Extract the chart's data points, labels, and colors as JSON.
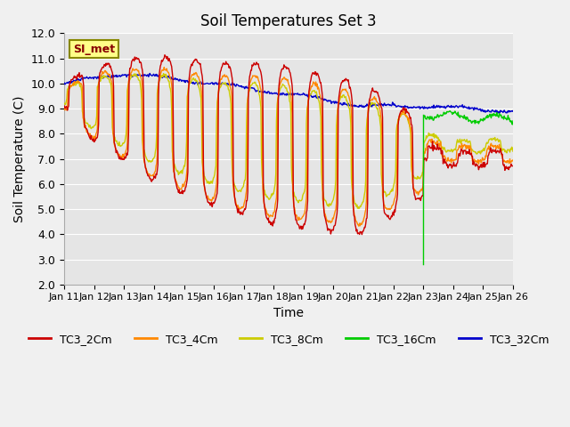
{
  "title": "Soil Temperatures Set 3",
  "xlabel": "Time",
  "ylabel": "Soil Temperature (C)",
  "ylim": [
    2.0,
    12.0
  ],
  "yticks": [
    2.0,
    3.0,
    4.0,
    5.0,
    6.0,
    7.0,
    8.0,
    9.0,
    10.0,
    11.0,
    12.0
  ],
  "xtick_labels": [
    "Jan 11",
    "Jan 12",
    "Jan 13",
    "Jan 14",
    "Jan 15",
    "Jan 16",
    "Jan 17",
    "Jan 18",
    "Jan 19",
    "Jan 20",
    "Jan 21",
    "Jan 22",
    "Jan 23",
    "Jan 24",
    "Jan 25",
    "Jan 26"
  ],
  "series_colors": {
    "TC3_2Cm": "#cc0000",
    "TC3_4Cm": "#ff8800",
    "TC3_8Cm": "#cccc00",
    "TC3_16Cm": "#00cc00",
    "TC3_32Cm": "#0000cc"
  },
  "legend_label": "SI_met",
  "background_color": "#e5e5e5",
  "grid_color": "#ffffff",
  "fig_bg": "#f0f0f0"
}
